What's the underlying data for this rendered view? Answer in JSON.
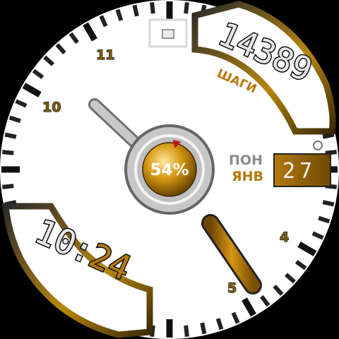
{
  "watch": {
    "steps": {
      "value": "14389",
      "label": "ШАГИ"
    },
    "time": {
      "hours": "10",
      "separator": ":",
      "minutes": "24"
    },
    "date": {
      "weekday": "ПОН",
      "month": "ЯНВ",
      "day": "27"
    },
    "battery": {
      "percent_text": "54%",
      "level": 0.54
    },
    "dial_numbers": [
      "4",
      "5",
      "10",
      "11"
    ],
    "colors": {
      "accent": "#b77a0a",
      "dial": "#ffffff",
      "lcd_text": "#e6e6e6",
      "pointer": "#c0171b"
    }
  }
}
